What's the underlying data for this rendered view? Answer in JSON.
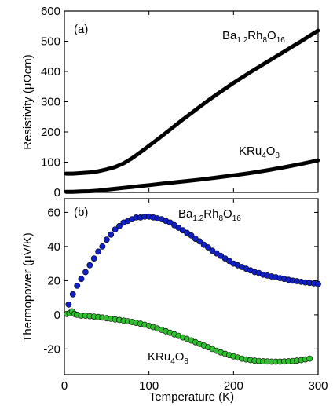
{
  "chart_data": [
    {
      "panel": "(a)",
      "type": "line",
      "ylabel": "Resistivity (μΩcm)",
      "ylim": [
        0,
        600
      ],
      "xlim": [
        0,
        300
      ],
      "yticks": [
        "0",
        "100",
        "200",
        "300",
        "400",
        "500",
        "600"
      ],
      "series": [
        {
          "name": "Ba1.2Rh8O16",
          "label_parts": [
            [
              "Ba",
              false
            ],
            [
              "1.2",
              true
            ],
            [
              "Rh",
              false
            ],
            [
              "8",
              true
            ],
            [
              "O",
              false
            ],
            [
              "16",
              true
            ]
          ],
          "color": "#000000",
          "x": [
            2,
            10,
            20,
            30,
            40,
            50,
            60,
            70,
            80,
            90,
            100,
            110,
            120,
            130,
            140,
            150,
            160,
            170,
            180,
            190,
            200,
            210,
            220,
            230,
            240,
            250,
            260,
            270,
            280,
            290,
            300
          ],
          "y": [
            62,
            62,
            64,
            66,
            70,
            76,
            84,
            96,
            113,
            133,
            154,
            175,
            197,
            219,
            241,
            262,
            283,
            304,
            324,
            343,
            362,
            380,
            398,
            415,
            432,
            449,
            466,
            483,
            500,
            518,
            535
          ]
        },
        {
          "name": "KRu4O8",
          "label_parts": [
            [
              "KRu",
              false
            ],
            [
              "4",
              true
            ],
            [
              "O",
              false
            ],
            [
              "8",
              true
            ]
          ],
          "color": "#000000",
          "x": [
            2,
            10,
            20,
            30,
            40,
            50,
            60,
            70,
            80,
            90,
            100,
            120,
            140,
            160,
            180,
            200,
            220,
            240,
            260,
            280,
            300
          ],
          "y": [
            2,
            2,
            3,
            4,
            6,
            9,
            12,
            15,
            18,
            21,
            24,
            30,
            36,
            42,
            49,
            56,
            64,
            73,
            83,
            94,
            106
          ]
        }
      ]
    },
    {
      "panel": "(b)",
      "type": "scatter",
      "ylabel": "Thermopower (μV/K)",
      "xlabel": "Temperature (K)",
      "ylim": [
        -35,
        68
      ],
      "xlim": [
        0,
        300
      ],
      "yticks": [
        "-20",
        "0",
        "20",
        "40",
        "60"
      ],
      "xticks": [
        "0",
        "100",
        "200",
        "300"
      ],
      "series": [
        {
          "name": "Ba1.2Rh8O16",
          "label_parts": [
            [
              "Ba",
              false
            ],
            [
              "1.2",
              true
            ],
            [
              "Rh",
              false
            ],
            [
              "8",
              true
            ],
            [
              "O",
              false
            ],
            [
              "16",
              true
            ]
          ],
          "color": "#1020c8",
          "x": [
            5,
            10,
            15,
            20,
            25,
            30,
            35,
            40,
            45,
            50,
            55,
            60,
            65,
            70,
            75,
            80,
            85,
            90,
            95,
            100,
            105,
            110,
            115,
            120,
            125,
            130,
            135,
            140,
            145,
            150,
            155,
            160,
            165,
            170,
            175,
            180,
            185,
            190,
            195,
            200,
            205,
            210,
            215,
            220,
            225,
            230,
            235,
            240,
            245,
            250,
            255,
            260,
            265,
            270,
            275,
            280,
            285,
            290,
            295,
            300
          ],
          "y": [
            6,
            12,
            17,
            21,
            25,
            29,
            33,
            37,
            40,
            44,
            47,
            50,
            52,
            54,
            55,
            56,
            57,
            57,
            57.5,
            57.5,
            57,
            56.5,
            56,
            55,
            54,
            52.5,
            51,
            49.5,
            48,
            46.5,
            44.5,
            43,
            41,
            39.5,
            37.5,
            36,
            34.5,
            33,
            31.5,
            30,
            29,
            28,
            27,
            26,
            25,
            24.5,
            23.5,
            23,
            22.5,
            22,
            21.5,
            21,
            20.5,
            20,
            19.7,
            19.3,
            19,
            18.7,
            18.4,
            18
          ]
        },
        {
          "name": "KRu4O8",
          "label_parts": [
            [
              "KRu",
              false
            ],
            [
              "4",
              true
            ],
            [
              "O",
              false
            ],
            [
              "8",
              true
            ]
          ],
          "color": "#30c030",
          "x": [
            3,
            6,
            9,
            12,
            15,
            20,
            25,
            30,
            35,
            40,
            45,
            50,
            55,
            60,
            65,
            70,
            75,
            80,
            85,
            90,
            95,
            100,
            105,
            110,
            115,
            120,
            125,
            130,
            135,
            140,
            145,
            150,
            155,
            160,
            165,
            170,
            175,
            180,
            185,
            190,
            195,
            200,
            205,
            210,
            215,
            220,
            225,
            230,
            235,
            240,
            245,
            250,
            255,
            260,
            265,
            270,
            275,
            280,
            285,
            290
          ],
          "y": [
            0.5,
            1,
            2,
            0.5,
            0,
            -0.5,
            -0.5,
            -0.8,
            -1,
            -1.3,
            -1.6,
            -2,
            -2.3,
            -2.7,
            -3,
            -3.4,
            -3.8,
            -4.2,
            -4.7,
            -5.2,
            -5.8,
            -6.5,
            -7.2,
            -8,
            -8.8,
            -9.6,
            -10.5,
            -11.4,
            -12.3,
            -13.2,
            -14.1,
            -15,
            -16,
            -17,
            -18,
            -19,
            -20,
            -21,
            -22,
            -22.8,
            -23.6,
            -24.3,
            -25,
            -25.6,
            -26.1,
            -26.5,
            -26.8,
            -27,
            -27.2,
            -27.3,
            -27.4,
            -27.4,
            -27.4,
            -27.3,
            -27.2,
            -27,
            -26.8,
            -26.5,
            -26.1,
            -25.6
          ]
        }
      ]
    }
  ]
}
